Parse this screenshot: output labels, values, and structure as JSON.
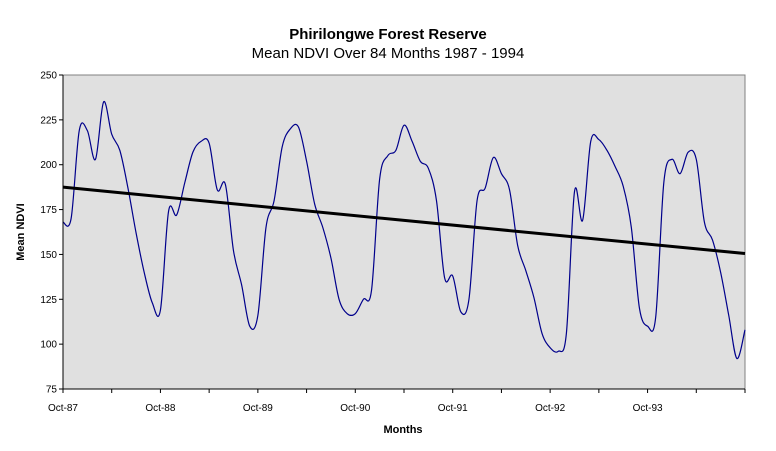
{
  "chart_data": {
    "type": "line",
    "title": "Phirilongwe Forest Reserve",
    "subtitle": "Mean NDVI Over 84 Months 1987 - 1994",
    "xlabel": "Months",
    "ylabel": "Mean NDVI",
    "ylim": [
      75,
      250
    ],
    "yticks": [
      75,
      100,
      125,
      150,
      175,
      200,
      225,
      250
    ],
    "x_range_months": [
      0,
      84
    ],
    "xticks": [
      {
        "month": 0,
        "label": "Oct-87"
      },
      {
        "month": 12,
        "label": "Oct-88"
      },
      {
        "month": 24,
        "label": "Oct-89"
      },
      {
        "month": 36,
        "label": "Oct-90"
      },
      {
        "month": 48,
        "label": "Oct-91"
      },
      {
        "month": 60,
        "label": "Oct-92"
      },
      {
        "month": 72,
        "label": "Oct-93"
      }
    ],
    "grid": false,
    "background": "#e0e0e0",
    "series": [
      {
        "color": "#00008b",
        "values": [
          168,
          170,
          219,
          219,
          203,
          235,
          217,
          208,
          187,
          162,
          140,
          123,
          119,
          174,
          172,
          190,
          207,
          213,
          212,
          186,
          189,
          152,
          133,
          110,
          116,
          165,
          180,
          210,
          220,
          221,
          202,
          178,
          165,
          148,
          125,
          117,
          117,
          125,
          130,
          192,
          205,
          208,
          222,
          213,
          202,
          198,
          180,
          137,
          138,
          118,
          125,
          180,
          187,
          204,
          195,
          186,
          155,
          141,
          126,
          106,
          98,
          96,
          106,
          185,
          169,
          213,
          214,
          208,
          199,
          188,
          165,
          120,
          110,
          115,
          190,
          203,
          195,
          207,
          203,
          168,
          158,
          140,
          116,
          92,
          108
        ]
      }
    ],
    "trendline": {
      "color": "#000000",
      "start": [
        0,
        187.5
      ],
      "end": [
        84,
        150.5
      ]
    }
  }
}
